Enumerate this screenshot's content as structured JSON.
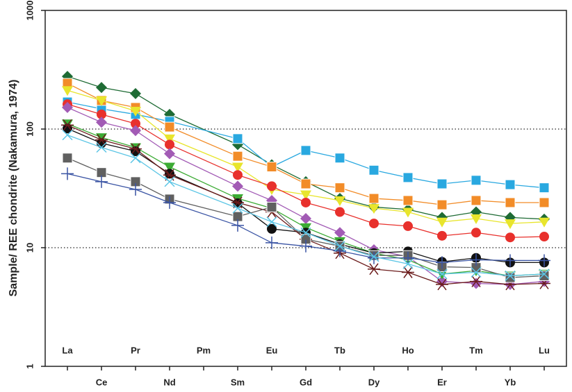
{
  "chart_data": {
    "type": "line",
    "y_label": "Sample/ REE chondrite (Nakamura, 1974)",
    "log_scale": true,
    "grid": true,
    "categories": [
      "La",
      "Ce",
      "Pr",
      "Nd",
      "Pm",
      "Sm",
      "Eu",
      "Gd",
      "Tb",
      "Dy",
      "Ho",
      "Er",
      "Tm",
      "Yb",
      "Lu"
    ],
    "ylim": [
      1,
      1000
    ],
    "yticks": [
      1,
      10,
      100,
      1000
    ],
    "series": [
      {
        "color": "#1e6b34",
        "marker": "diamond",
        "values": [
          278,
          224,
          199,
          133,
          null,
          74,
          50,
          36,
          26,
          22,
          21,
          18,
          20,
          18,
          17.4
        ]
      },
      {
        "color": "#29a8e0",
        "marker": "square",
        "values": [
          169,
          148,
          133,
          116,
          null,
          83,
          48,
          66,
          57,
          45,
          39,
          34.5,
          37,
          34,
          32
        ]
      },
      {
        "color": "#f28c28",
        "marker": "square",
        "values": [
          243,
          174,
          152,
          104,
          null,
          59,
          48,
          34.5,
          32,
          26,
          25,
          23,
          25,
          24,
          24
        ]
      },
      {
        "color": "#e8e52c",
        "marker": "triangle",
        "values": [
          212,
          174,
          142,
          83,
          null,
          48,
          31,
          28,
          25,
          21.5,
          20,
          16.5,
          17.6,
          16,
          16.5
        ]
      },
      {
        "color": "#e8302c",
        "marker": "circle",
        "values": [
          162,
          133,
          111,
          74,
          null,
          41,
          33,
          24,
          20,
          16,
          15.2,
          12.6,
          13.4,
          12.2,
          12.4
        ]
      },
      {
        "color": "#a25bb5",
        "marker": "diamond",
        "values": [
          152,
          114,
          97,
          62,
          null,
          33,
          25,
          17.6,
          13.4,
          9.6,
          8.4,
          5.2,
          5.0,
          4.9,
          5.2
        ]
      },
      {
        "color": "#3cab34",
        "marker": "triangle",
        "values": [
          111,
          85,
          70,
          48,
          null,
          26,
          21.5,
          14.8,
          11.3,
          9.0,
          7.9,
          6.0,
          6.4,
          5.8,
          6.0
        ]
      },
      {
        "color": "#111111",
        "marker": "circle",
        "values": [
          101,
          76,
          65,
          42,
          null,
          23.7,
          14.4,
          13.4,
          10.7,
          9.0,
          9.3,
          7.6,
          8.2,
          7.5,
          7.5
        ]
      },
      {
        "color": "#6b1b1b",
        "marker": "asterisk",
        "values": [
          108,
          81,
          68,
          41,
          null,
          24,
          20,
          11.8,
          9.0,
          6.6,
          6.2,
          4.9,
          5.2,
          4.9,
          5.0
        ]
      },
      {
        "color": "#606060",
        "marker": "square",
        "values": [
          57,
          43,
          36,
          25.7,
          null,
          18.3,
          22,
          11.8,
          10.3,
          8.6,
          8.6,
          6.9,
          6.8,
          5.6,
          5.8
        ]
      },
      {
        "color": "#3a54a4",
        "marker": "cross",
        "values": [
          42,
          36,
          31,
          24,
          null,
          15.4,
          11,
          10.3,
          9.4,
          8.2,
          8.2,
          7.5,
          7.9,
          7.8,
          7.8
        ]
      },
      {
        "color": "#5bc5e5",
        "marker": "x",
        "values": [
          89,
          70,
          57,
          36,
          null,
          21.5,
          16.5,
          13.4,
          10.3,
          8.4,
          7.3,
          6.0,
          6.2,
          5.8,
          6.0
        ]
      }
    ]
  }
}
